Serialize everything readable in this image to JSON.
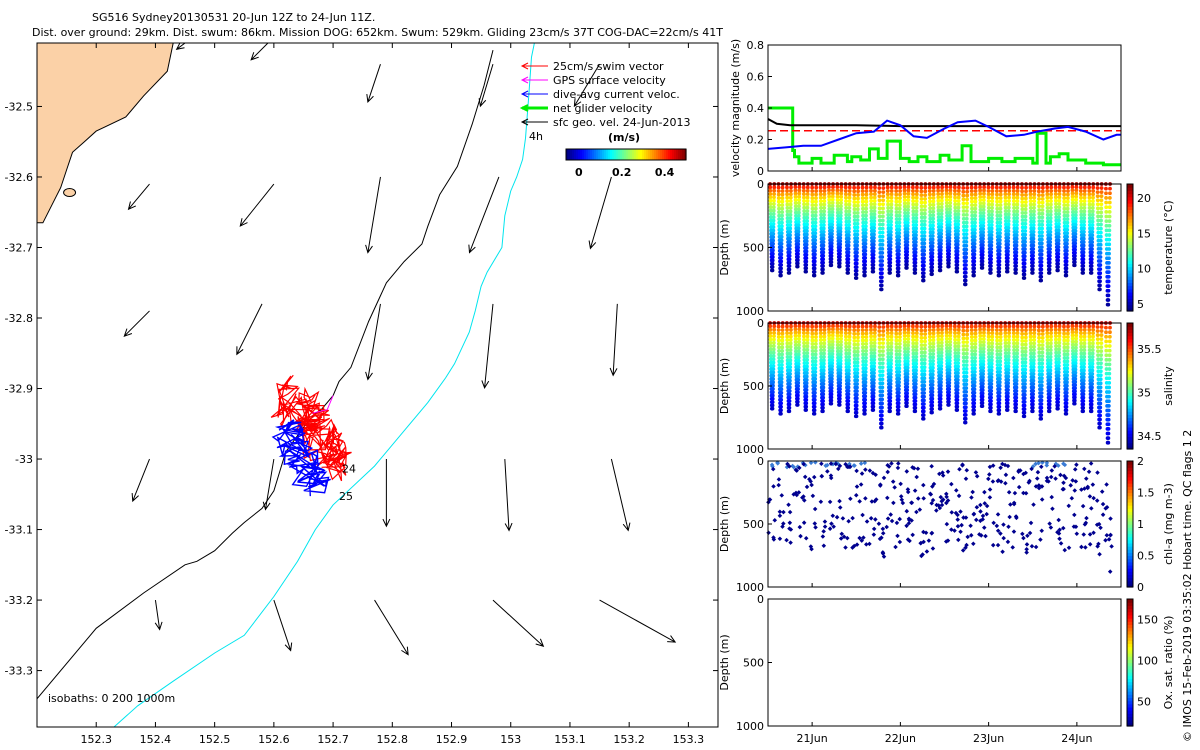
{
  "title_line1": "SG516 Sydney20130531 20-Jun 12Z to 24-Jun 11Z.",
  "title_line2": "Dist. over ground: 29km. Dist. swum: 86km. Mission DOG: 652km. Swum: 529km. Gliding 23cm/s 37T COG-DAC=22cm/s 41T",
  "credit": "© IMOS 15-Feb-2019 03:35:02 Hobart time. QC flags 1  2",
  "colors": {
    "land": "#fbd1a7",
    "swim": "#ff0000",
    "gps": "#ff00ff",
    "dac": "#0000ff",
    "net": "#00ee00",
    "geo": "#000000",
    "iso200": "#000000",
    "iso1000": "#00e5ee"
  },
  "chart_data": [
    {
      "type": "map",
      "xlabel": "",
      "ylabel": "",
      "xlim": [
        152.2,
        153.35
      ],
      "ylim": [
        -33.38,
        -32.41
      ],
      "xticks": [
        "152.3",
        "152.4",
        "152.5",
        "152.6",
        "152.7",
        "152.8",
        "152.9",
        "153",
        "153.1",
        "153.2",
        "153.3"
      ],
      "xtick_values": [
        152.3,
        152.4,
        152.5,
        152.6,
        152.7,
        152.8,
        152.9,
        153.0,
        153.1,
        153.2,
        153.3
      ],
      "yticks": [
        "-32.5",
        "-32.6",
        "-32.7",
        "-32.8",
        "-32.9",
        "-33",
        "-33.1",
        "-33.2",
        "-33.3"
      ],
      "ytick_values": [
        -32.5,
        -32.6,
        -32.7,
        -32.8,
        -32.9,
        -33.0,
        -33.1,
        -33.2,
        -33.3
      ],
      "legend": [
        "25cm/s swim vector",
        "GPS surface velocity",
        "dive-avg current veloc.",
        "net glider velocity",
        "sfc geo. vel. 24-Jun-2013"
      ],
      "legend_note": "4h",
      "colorbar": {
        "title": "(m/s)",
        "ticks": [
          "0",
          "0.2",
          "0.4"
        ],
        "tick_values": [
          0,
          0.2,
          0.4
        ],
        "range": [
          -0.06,
          0.5
        ]
      },
      "isobath_label": "isobaths: 0   200  1000m",
      "track_labels": [
        {
          "text": "24",
          "lon": 152.715,
          "lat": -33.019
        },
        {
          "text": "25",
          "lon": 152.71,
          "lat": -33.058
        }
      ],
      "isobath_200": [
        [
          152.2,
          -33.34
        ],
        [
          152.3,
          -33.24
        ],
        [
          152.38,
          -33.19
        ],
        [
          152.45,
          -33.15
        ],
        [
          152.47,
          -33.145
        ],
        [
          152.5,
          -33.13
        ],
        [
          152.53,
          -33.105
        ],
        [
          152.55,
          -33.09
        ],
        [
          152.58,
          -33.07
        ],
        [
          152.6,
          -33.045
        ],
        [
          152.62,
          -32.99
        ],
        [
          152.65,
          -32.955
        ],
        [
          152.67,
          -32.935
        ],
        [
          152.68,
          -32.93
        ],
        [
          152.7,
          -32.91
        ],
        [
          152.71,
          -32.89
        ],
        [
          152.73,
          -32.87
        ],
        [
          152.76,
          -32.805
        ],
        [
          152.79,
          -32.75
        ],
        [
          152.82,
          -32.72
        ],
        [
          152.85,
          -32.695
        ],
        [
          152.86,
          -32.67
        ],
        [
          152.88,
          -32.625
        ],
        [
          152.91,
          -32.585
        ],
        [
          152.935,
          -32.525
        ],
        [
          152.955,
          -32.47
        ],
        [
          152.97,
          -32.42
        ]
      ],
      "isobath_1000": [
        [
          152.33,
          -33.38
        ],
        [
          152.37,
          -33.35
        ],
        [
          152.43,
          -33.315
        ],
        [
          152.5,
          -33.275
        ],
        [
          152.55,
          -33.25
        ],
        [
          152.6,
          -33.195
        ],
        [
          152.64,
          -33.145
        ],
        [
          152.67,
          -33.1
        ],
        [
          152.7,
          -33.065
        ],
        [
          152.77,
          -33.01
        ],
        [
          152.82,
          -32.96
        ],
        [
          152.86,
          -32.92
        ],
        [
          152.89,
          -32.885
        ],
        [
          152.905,
          -32.865
        ],
        [
          152.93,
          -32.82
        ],
        [
          152.94,
          -32.79
        ],
        [
          152.95,
          -32.755
        ],
        [
          152.96,
          -32.735
        ],
        [
          152.985,
          -32.7
        ],
        [
          152.99,
          -32.655
        ],
        [
          153.0,
          -32.62
        ],
        [
          153.01,
          -32.6
        ],
        [
          153.02,
          -32.575
        ],
        [
          153.025,
          -32.545
        ],
        [
          153.03,
          -32.49
        ],
        [
          153.035,
          -32.43
        ],
        [
          153.04,
          -32.41
        ]
      ],
      "coastline": [
        [
          152.2,
          -32.41
        ],
        [
          152.43,
          -32.41
        ],
        [
          152.42,
          -32.45
        ],
        [
          152.38,
          -32.485
        ],
        [
          152.35,
          -32.515
        ],
        [
          152.3,
          -32.535
        ],
        [
          152.28,
          -32.55
        ],
        [
          152.26,
          -32.565
        ],
        [
          152.25,
          -32.59
        ],
        [
          152.24,
          -32.615
        ],
        [
          152.225,
          -32.64
        ],
        [
          152.21,
          -32.665
        ],
        [
          152.2,
          -32.665
        ]
      ],
      "geo_vectors": [
        {
          "lon": 152.45,
          "lat": -32.41,
          "u": -0.02,
          "v": -0.015
        },
        {
          "lon": 152.59,
          "lat": -32.41,
          "u": -0.04,
          "v": -0.04
        },
        {
          "lon": 152.78,
          "lat": -32.44,
          "u": -0.03,
          "v": -0.09
        },
        {
          "lon": 152.97,
          "lat": -32.44,
          "u": -0.03,
          "v": -0.1
        },
        {
          "lon": 153.15,
          "lat": -32.44,
          "u": -0.06,
          "v": -0.1
        },
        {
          "lon": 152.39,
          "lat": -32.61,
          "u": -0.05,
          "v": -0.06
        },
        {
          "lon": 152.6,
          "lat": -32.61,
          "u": -0.08,
          "v": -0.1
        },
        {
          "lon": 152.78,
          "lat": -32.6,
          "u": -0.03,
          "v": -0.18
        },
        {
          "lon": 152.98,
          "lat": -32.6,
          "u": -0.07,
          "v": -0.18
        },
        {
          "lon": 153.17,
          "lat": -32.6,
          "u": -0.05,
          "v": -0.17
        },
        {
          "lon": 152.39,
          "lat": -32.79,
          "u": -0.06,
          "v": -0.06
        },
        {
          "lon": 152.58,
          "lat": -32.78,
          "u": -0.06,
          "v": -0.12
        },
        {
          "lon": 152.78,
          "lat": -32.78,
          "u": -0.03,
          "v": -0.18
        },
        {
          "lon": 152.97,
          "lat": -32.78,
          "u": -0.02,
          "v": -0.2
        },
        {
          "lon": 153.18,
          "lat": -32.78,
          "u": -0.01,
          "v": -0.17
        },
        {
          "lon": 152.39,
          "lat": -33.0,
          "u": -0.04,
          "v": -0.1
        },
        {
          "lon": 152.6,
          "lat": -33.0,
          "u": -0.02,
          "v": -0.12
        },
        {
          "lon": 152.79,
          "lat": -33.0,
          "u": 0.0,
          "v": -0.16
        },
        {
          "lon": 152.99,
          "lat": -33.0,
          "u": 0.01,
          "v": -0.17
        },
        {
          "lon": 153.17,
          "lat": -33.0,
          "u": 0.04,
          "v": -0.17
        },
        {
          "lon": 152.4,
          "lat": -33.2,
          "u": 0.01,
          "v": -0.07
        },
        {
          "lon": 152.6,
          "lat": -33.2,
          "u": 0.04,
          "v": -0.12
        },
        {
          "lon": 152.77,
          "lat": -33.2,
          "u": 0.08,
          "v": -0.13
        },
        {
          "lon": 152.97,
          "lat": -33.2,
          "u": 0.12,
          "v": -0.11
        },
        {
          "lon": 153.15,
          "lat": -33.2,
          "u": 0.18,
          "v": -0.1
        }
      ]
    },
    {
      "type": "line",
      "ylabel": "velocity magnitude (m/s)",
      "xlim": [
        20.5,
        24.5
      ],
      "ylim": [
        0,
        0.8
      ],
      "yticks": [
        "0",
        "0.2",
        "0.4",
        "0.6",
        "0.8"
      ],
      "ytick_values": [
        0,
        0.2,
        0.4,
        0.6,
        0.8
      ],
      "series": [
        {
          "name": "net glider velocity",
          "color": "#00ee00",
          "style": "step",
          "x": [
            20.5,
            20.78,
            20.78,
            20.8,
            20.8,
            20.85,
            20.85,
            21.0,
            21.0,
            21.1,
            21.1,
            21.25,
            21.25,
            21.4,
            21.4,
            21.45,
            21.45,
            21.55,
            21.55,
            21.65,
            21.65,
            21.75,
            21.75,
            21.85,
            21.85,
            22.0,
            22.0,
            22.1,
            22.1,
            22.2,
            22.2,
            22.3,
            22.3,
            22.45,
            22.45,
            22.55,
            22.55,
            22.7,
            22.7,
            22.8,
            22.8,
            23.0,
            23.0,
            23.15,
            23.15,
            23.3,
            23.3,
            23.5,
            23.5,
            23.55,
            23.55,
            23.65,
            23.65,
            23.7,
            23.7,
            23.8,
            23.8,
            23.9,
            23.9,
            24.1,
            24.1,
            24.3,
            24.3,
            24.5
          ],
          "y": [
            0.4,
            0.4,
            0.13,
            0.13,
            0.09,
            0.09,
            0.05,
            0.05,
            0.08,
            0.08,
            0.05,
            0.05,
            0.1,
            0.1,
            0.06,
            0.06,
            0.09,
            0.09,
            0.07,
            0.07,
            0.14,
            0.14,
            0.08,
            0.08,
            0.19,
            0.19,
            0.08,
            0.08,
            0.06,
            0.06,
            0.09,
            0.09,
            0.06,
            0.06,
            0.1,
            0.1,
            0.07,
            0.07,
            0.16,
            0.16,
            0.06,
            0.06,
            0.08,
            0.08,
            0.06,
            0.06,
            0.08,
            0.08,
            0.05,
            0.05,
            0.24,
            0.24,
            0.05,
            0.05,
            0.09,
            0.09,
            0.11,
            0.11,
            0.07,
            0.07,
            0.05,
            0.05,
            0.04,
            0.04
          ]
        },
        {
          "name": "sfc geo. vel. 24-Jun-2013",
          "color": "#000000",
          "x": [
            20.5,
            20.6,
            20.75,
            21.0,
            21.5,
            22.0,
            22.5,
            23.0,
            23.5,
            24.0,
            24.5
          ],
          "y": [
            0.33,
            0.3,
            0.29,
            0.29,
            0.29,
            0.285,
            0.285,
            0.285,
            0.285,
            0.285,
            0.285
          ]
        },
        {
          "name": "25cm/s swim vector",
          "color": "#ff0000",
          "dash": true,
          "x": [
            20.5,
            24.5
          ],
          "y": [
            0.255,
            0.255
          ]
        },
        {
          "name": "dive-avg current veloc.",
          "color": "#0000ff",
          "x": [
            20.5,
            20.7,
            20.9,
            21.1,
            21.3,
            21.5,
            21.7,
            21.85,
            22.0,
            22.15,
            22.3,
            22.5,
            22.65,
            22.85,
            23.0,
            23.2,
            23.4,
            23.55,
            23.75,
            23.9,
            24.1,
            24.3,
            24.45,
            24.5
          ],
          "y": [
            0.14,
            0.15,
            0.16,
            0.16,
            0.2,
            0.24,
            0.25,
            0.32,
            0.29,
            0.22,
            0.21,
            0.27,
            0.31,
            0.32,
            0.28,
            0.22,
            0.23,
            0.25,
            0.27,
            0.28,
            0.25,
            0.2,
            0.23,
            0.23
          ]
        }
      ]
    },
    {
      "type": "scatter",
      "variable": "temperature",
      "ylabel": "Depth (m)",
      "colorbar_label": "temperature (°C)",
      "ylim": [
        1000,
        0
      ],
      "yticks": [
        "0",
        "500",
        "1000"
      ],
      "ytick_values": [
        0,
        500,
        1000
      ],
      "colorbar_ticks": [
        "5",
        "10",
        "15",
        "20"
      ],
      "colorbar_values": [
        5,
        10,
        15,
        20
      ],
      "colorbar_range": [
        4,
        22
      ],
      "dives": [
        680,
        720,
        700,
        650,
        690,
        720,
        700,
        640,
        650,
        700,
        740,
        720,
        690,
        830,
        700,
        720,
        660,
        700,
        760,
        710,
        680,
        650,
        690,
        790,
        720,
        660,
        700,
        720,
        690,
        700,
        740,
        700,
        760,
        700,
        680,
        720,
        640,
        700,
        700,
        830,
        950
      ],
      "x_start": 20.5,
      "x_end": 24.4,
      "v_surface": 21.5,
      "v_deep": 4.5
    },
    {
      "type": "scatter",
      "variable": "salinity",
      "ylabel": "Depth (m)",
      "colorbar_label": "salinity",
      "ylim": [
        1000,
        0
      ],
      "yticks": [
        "0",
        "500",
        "1000"
      ],
      "ytick_values": [
        0,
        500,
        1000
      ],
      "colorbar_ticks": [
        "34.5",
        "35",
        "35.5"
      ],
      "colorbar_values": [
        34.5,
        35,
        35.5
      ],
      "colorbar_range": [
        34.35,
        35.8
      ],
      "dives": [
        680,
        720,
        700,
        650,
        690,
        720,
        700,
        640,
        650,
        700,
        740,
        720,
        690,
        830,
        700,
        720,
        660,
        700,
        760,
        710,
        680,
        650,
        690,
        790,
        720,
        660,
        700,
        720,
        690,
        700,
        740,
        700,
        760,
        700,
        680,
        720,
        640,
        700,
        700,
        830,
        950
      ],
      "x_start": 20.5,
      "x_end": 24.4,
      "v_surface": 35.7,
      "v_deep": 34.45
    },
    {
      "type": "scatter",
      "variable": "chl-a",
      "ylabel": "Depth (m)",
      "colorbar_label": "chl-a (mg m-3)",
      "ylim": [
        1000,
        0
      ],
      "yticks": [
        "0",
        "500",
        "1000"
      ],
      "ytick_values": [
        0,
        500,
        1000
      ],
      "colorbar_ticks": [
        "0",
        "0.5",
        "1",
        "1.5",
        "2"
      ],
      "colorbar_values": [
        0,
        0.5,
        1,
        1.5,
        2
      ],
      "colorbar_range": [
        0,
        2
      ],
      "dives": [
        680,
        720,
        700,
        650,
        690,
        720,
        700,
        640,
        650,
        700,
        740,
        720,
        690,
        830,
        700,
        720,
        660,
        700,
        760,
        710,
        680,
        650,
        690,
        790,
        720,
        660,
        700,
        720,
        690,
        700,
        740,
        700,
        760,
        700,
        680,
        720,
        640,
        700,
        700,
        830,
        950
      ],
      "x_start": 20.5,
      "x_end": 24.4,
      "v_surface": 0.15,
      "v_deep": 0.02
    },
    {
      "type": "scatter",
      "variable": "oxygen",
      "ylabel": "Depth (m)",
      "colorbar_label": "Ox. sat. ratio (%)",
      "ylim": [
        1000,
        0
      ],
      "yticks": [
        "0",
        "500",
        "1000"
      ],
      "ytick_values": [
        0,
        500,
        1000
      ],
      "xticks": [
        "21Jun",
        "22Jun",
        "23Jun",
        "24Jun"
      ],
      "xtick_values": [
        21,
        22,
        23,
        24
      ],
      "xlim": [
        20.5,
        24.5
      ],
      "colorbar_ticks": [
        "50",
        "100",
        "150"
      ],
      "colorbar_values": [
        50,
        100,
        150
      ],
      "colorbar_range": [
        20,
        175
      ],
      "dives": []
    }
  ]
}
